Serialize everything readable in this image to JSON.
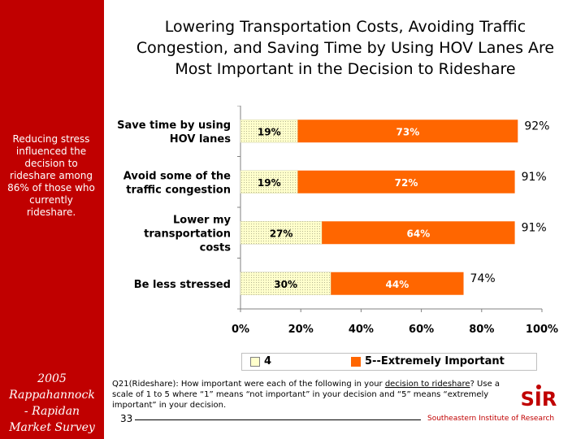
{
  "title": {
    "line1": "Lowering Transportation Costs, Avoiding Traffic",
    "line2": "Congestion, and Saving Time by Using HOV Lanes Are",
    "line3": "Most Important in the Decision to Rideshare"
  },
  "sidebar": {
    "note": "Reducing stress influenced the decision to rideshare among 86% of those who currently rideshare.",
    "footer_line1": "2005",
    "footer_line2": "Rappahannock",
    "footer_line3": "- Rapidan",
    "footer_line4": "Market Survey"
  },
  "chart_data": {
    "type": "bar",
    "orientation": "horizontal",
    "stacked": true,
    "categories": [
      [
        "Save time by using",
        "HOV lanes"
      ],
      [
        "Avoid some of the",
        "traffic congestion"
      ],
      [
        "Lower my",
        "transportation",
        "costs"
      ],
      [
        "Be less stressed"
      ]
    ],
    "series": [
      {
        "name": "4",
        "values": [
          19,
          19,
          27,
          30
        ],
        "labels": [
          "19%",
          "19%",
          "27%",
          "30%"
        ]
      },
      {
        "name": "5--Extremely Important",
        "values": [
          73,
          72,
          64,
          44
        ],
        "labels": [
          "73%",
          "72%",
          "64%",
          "44%"
        ]
      }
    ],
    "totals": [
      "92%",
      "91%",
      "91%",
      "74%"
    ],
    "xlim": [
      0,
      100
    ],
    "xticks": [
      0,
      20,
      40,
      60,
      80,
      100
    ],
    "xtick_labels": [
      "0%",
      "20%",
      "40%",
      "60%",
      "80%",
      "100%"
    ],
    "legend_position": "bottom",
    "colors": {
      "series4": "#ffffcc",
      "series5": "#ff6600"
    }
  },
  "footnote": {
    "part1": "Q21(Rideshare): How important were each of the following in your ",
    "link": "decision to rideshare",
    "part2": "? Use a scale of 1 to 5 where “1” means “not important” in your decision and “5” means “extremely important” in your decision."
  },
  "page_number": "33",
  "org": {
    "name": "Southeastern Institute of Research",
    "logo_text": "SIR"
  }
}
